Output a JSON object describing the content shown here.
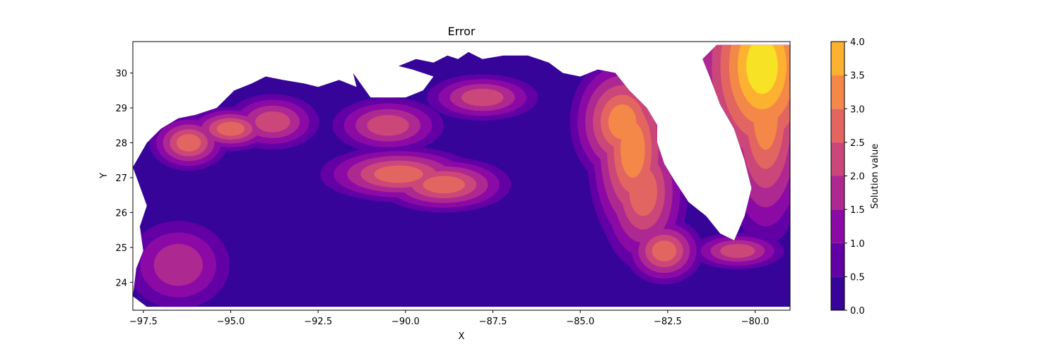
{
  "chart_data": {
    "type": "heatmap",
    "subtype": "filled-contour",
    "title": "Error",
    "xlabel": "X",
    "ylabel": "Y",
    "xlim": [
      -97.8,
      -79.0
    ],
    "ylim": [
      23.2,
      30.9
    ],
    "x_ticks": [
      -97.5,
      -95.0,
      -92.5,
      -90.0,
      -87.5,
      -85.0,
      -82.5,
      -80.0
    ],
    "x_tick_labels": [
      "−97.5",
      "−95.0",
      "−92.5",
      "−90.0",
      "−87.5",
      "−85.0",
      "−82.5",
      "−80.0"
    ],
    "y_ticks": [
      24,
      25,
      26,
      27,
      28,
      29,
      30
    ],
    "y_tick_labels": [
      "24",
      "25",
      "26",
      "27",
      "28",
      "29",
      "30"
    ],
    "colormap": "plasma",
    "colorbar": {
      "label": "Solution value",
      "levels": [
        0.0,
        0.5,
        1.0,
        1.5,
        2.0,
        2.5,
        3.0,
        3.5,
        4.0
      ],
      "tick_labels": [
        "0.0",
        "0.5",
        "1.0",
        "1.5",
        "2.0",
        "2.5",
        "3.0",
        "3.5",
        "4.0"
      ],
      "colors": [
        "#370499",
        "#6200a6",
        "#8b0aa5",
        "#ae2892",
        "#cb4679",
        "#e26561",
        "#f48849",
        "#fdb130",
        "#f7e225"
      ]
    },
    "domain_outline": [
      [
        -97.8,
        23.6
      ],
      [
        -97.7,
        24.4
      ],
      [
        -97.5,
        24.9
      ],
      [
        -97.6,
        25.6
      ],
      [
        -97.4,
        26.2
      ],
      [
        -97.8,
        27.3
      ],
      [
        -97.4,
        28.0
      ],
      [
        -97.0,
        28.4
      ],
      [
        -96.5,
        28.7
      ],
      [
        -96.0,
        28.8
      ],
      [
        -95.4,
        29.0
      ],
      [
        -94.9,
        29.5
      ],
      [
        -94.4,
        29.7
      ],
      [
        -94.0,
        29.9
      ],
      [
        -93.5,
        29.8
      ],
      [
        -92.9,
        29.7
      ],
      [
        -92.5,
        29.6
      ],
      [
        -91.9,
        29.8
      ],
      [
        -91.4,
        29.6
      ],
      [
        -91.5,
        30.0
      ],
      [
        -91.0,
        29.3
      ],
      [
        -90.5,
        29.3
      ],
      [
        -90.0,
        29.3
      ],
      [
        -89.5,
        29.5
      ],
      [
        -89.2,
        29.9
      ],
      [
        -89.8,
        30.1
      ],
      [
        -90.2,
        30.2
      ],
      [
        -89.7,
        30.4
      ],
      [
        -89.2,
        30.3
      ],
      [
        -88.8,
        30.5
      ],
      [
        -88.5,
        30.4
      ],
      [
        -88.2,
        30.6
      ],
      [
        -87.8,
        30.4
      ],
      [
        -87.2,
        30.5
      ],
      [
        -86.5,
        30.5
      ],
      [
        -85.9,
        30.3
      ],
      [
        -85.5,
        30.0
      ],
      [
        -85.0,
        29.9
      ],
      [
        -84.5,
        30.1
      ],
      [
        -84.0,
        30.0
      ],
      [
        -83.6,
        29.5
      ],
      [
        -83.1,
        29.0
      ],
      [
        -82.8,
        28.5
      ],
      [
        -82.8,
        28.0
      ],
      [
        -82.6,
        27.4
      ],
      [
        -82.3,
        26.9
      ],
      [
        -81.9,
        26.3
      ],
      [
        -81.4,
        25.9
      ],
      [
        -81.0,
        25.4
      ],
      [
        -80.6,
        25.2
      ],
      [
        -80.3,
        25.9
      ],
      [
        -80.1,
        26.7
      ],
      [
        -80.3,
        27.5
      ],
      [
        -80.6,
        28.4
      ],
      [
        -81.0,
        29.1
      ],
      [
        -81.3,
        29.9
      ],
      [
        -81.5,
        30.4
      ],
      [
        -81.1,
        30.8
      ],
      [
        -79.0,
        30.8
      ],
      [
        -79.0,
        23.3
      ],
      [
        -97.4,
        23.3
      ]
    ],
    "hotspots": [
      {
        "x": -79.8,
        "y": 30.2,
        "value": 4.0,
        "rx": 0.45,
        "ry": 0.8
      },
      {
        "x": -79.7,
        "y": 28.8,
        "value": 3.0,
        "rx": 0.35,
        "ry": 1.0
      },
      {
        "x": -83.5,
        "y": 27.8,
        "value": 3.2,
        "rx": 0.35,
        "ry": 0.8
      },
      {
        "x": -83.8,
        "y": 28.6,
        "value": 2.8,
        "rx": 0.4,
        "ry": 0.5
      },
      {
        "x": -83.2,
        "y": 26.6,
        "value": 2.3,
        "rx": 0.4,
        "ry": 0.7
      },
      {
        "x": -82.6,
        "y": 24.9,
        "value": 2.3,
        "rx": 0.35,
        "ry": 0.3
      },
      {
        "x": -90.2,
        "y": 27.1,
        "value": 2.7,
        "rx": 0.7,
        "ry": 0.25
      },
      {
        "x": -88.9,
        "y": 26.8,
        "value": 2.4,
        "rx": 0.6,
        "ry": 0.25
      },
      {
        "x": -96.2,
        "y": 28.0,
        "value": 2.7,
        "rx": 0.35,
        "ry": 0.25
      },
      {
        "x": -95.0,
        "y": 28.4,
        "value": 2.4,
        "rx": 0.4,
        "ry": 0.2
      },
      {
        "x": -93.8,
        "y": 28.6,
        "value": 2.2,
        "rx": 0.5,
        "ry": 0.3
      },
      {
        "x": -87.8,
        "y": 29.3,
        "value": 2.0,
        "rx": 0.6,
        "ry": 0.25
      },
      {
        "x": -90.5,
        "y": 28.5,
        "value": 1.8,
        "rx": 0.6,
        "ry": 0.3
      },
      {
        "x": -96.5,
        "y": 24.5,
        "value": 1.6,
        "rx": 0.7,
        "ry": 0.6
      },
      {
        "x": -80.5,
        "y": 24.9,
        "value": 1.8,
        "rx": 0.5,
        "ry": 0.2
      }
    ]
  }
}
